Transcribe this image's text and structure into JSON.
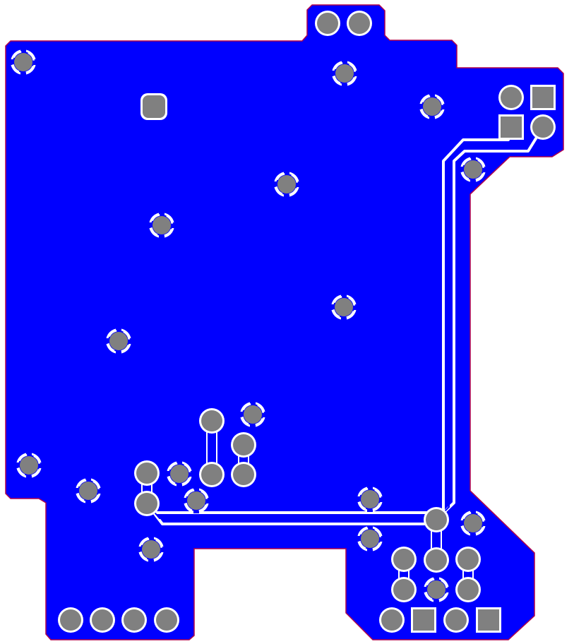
{
  "title": "",
  "colors": {
    "background": "#ffffff",
    "copper_fill": "#0000ff",
    "outline": "#b0004a",
    "pad": "#808080",
    "trace": "#ffffff",
    "clearance": "#ffffff"
  },
  "layer": {
    "name": "copper-pour",
    "trace_count": 5
  },
  "pads": [
    {
      "id": "pad-top-connector-1",
      "shape": "round"
    },
    {
      "id": "pad-top-connector-2",
      "shape": "round"
    },
    {
      "id": "pad-mounting-1",
      "shape": "round"
    },
    {
      "id": "pad-square-rounded",
      "shape": "rounded-square"
    },
    {
      "id": "pad-via-a",
      "shape": "round"
    },
    {
      "id": "pad-via-b",
      "shape": "round"
    },
    {
      "id": "pad-header-left",
      "shape": "round"
    },
    {
      "id": "pad-header-square-1",
      "shape": "square"
    },
    {
      "id": "pad-header-square-2",
      "shape": "square"
    },
    {
      "id": "pad-header-right",
      "shape": "round"
    }
  ]
}
